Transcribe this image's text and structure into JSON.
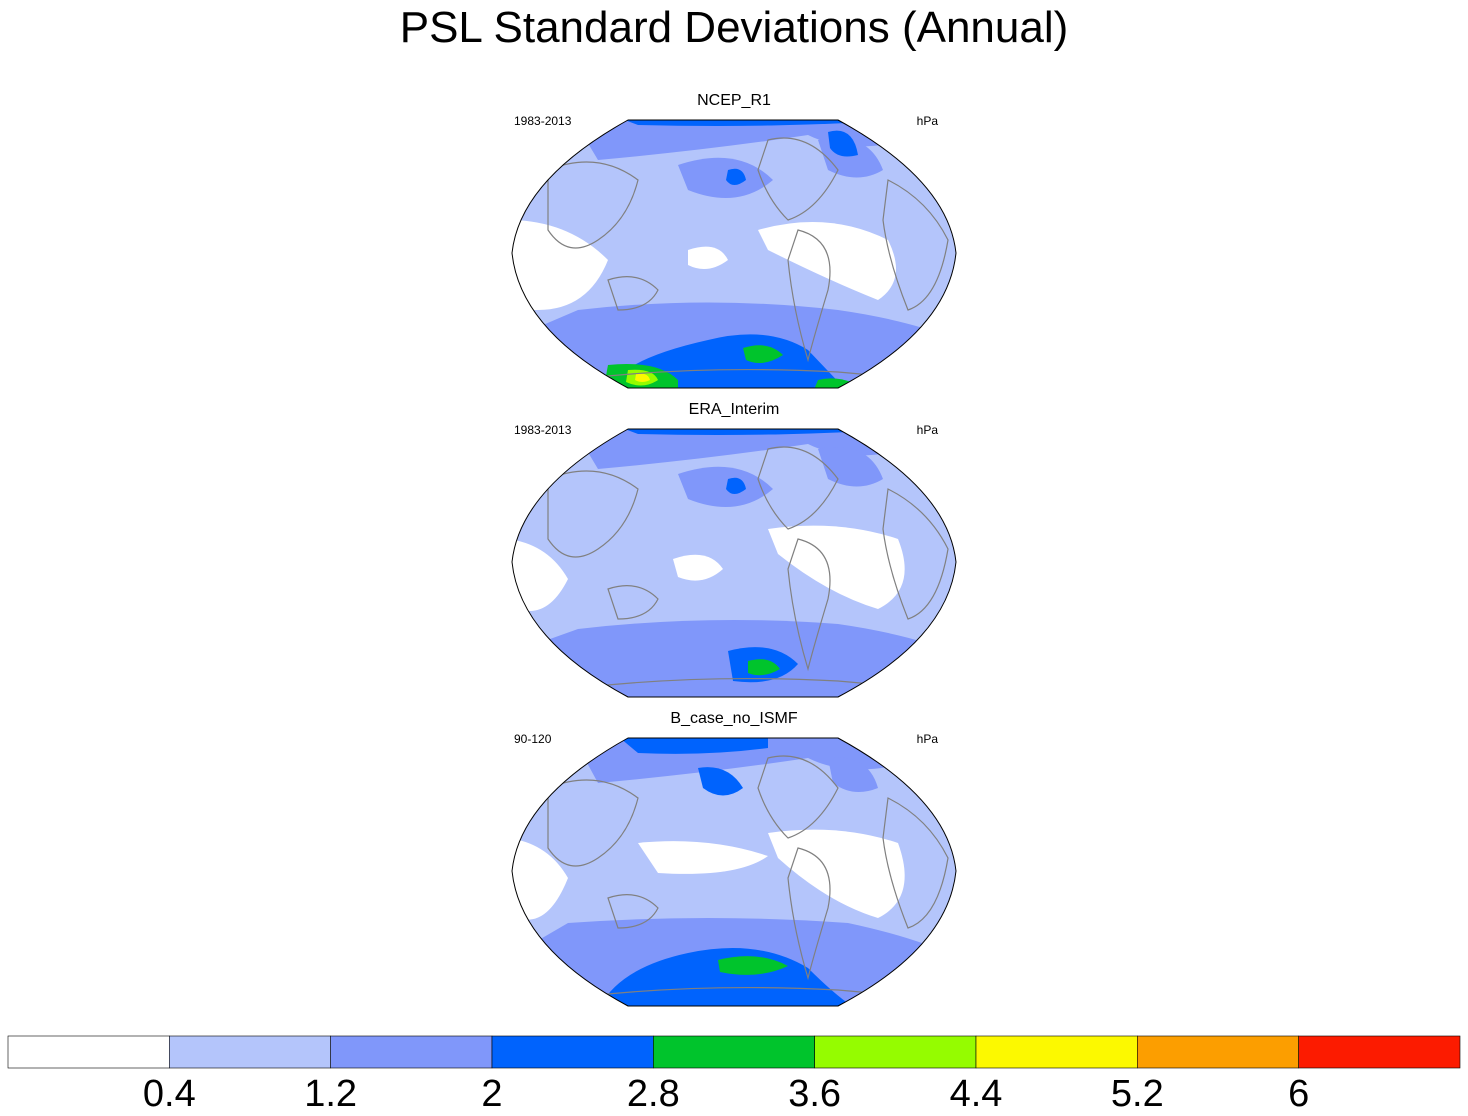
{
  "title": "PSL Standard Deviations (Annual)",
  "units": "hPa",
  "panels": [
    {
      "title": "NCEP_R1",
      "period": "1983-2013",
      "units": "hPa"
    },
    {
      "title": "ERA_Interim",
      "period": "1983-2013",
      "units": "hPa"
    },
    {
      "title": "B_case_no_ISMF",
      "period": "90-120",
      "units": "hPa"
    }
  ],
  "colorbar": {
    "labels": [
      "0.4",
      "1.2",
      "2",
      "2.8",
      "3.6",
      "4.4",
      "5.2",
      "6"
    ],
    "colors": [
      "#ffffff",
      "#b4c5fb",
      "#8097fa",
      "#0063fd",
      "#00c42c",
      "#95fc00",
      "#fcf900",
      "#fc9e00",
      "#fc1b00"
    ]
  },
  "palette": {
    "land_outline": "#808080",
    "map_border": "#000000"
  }
}
